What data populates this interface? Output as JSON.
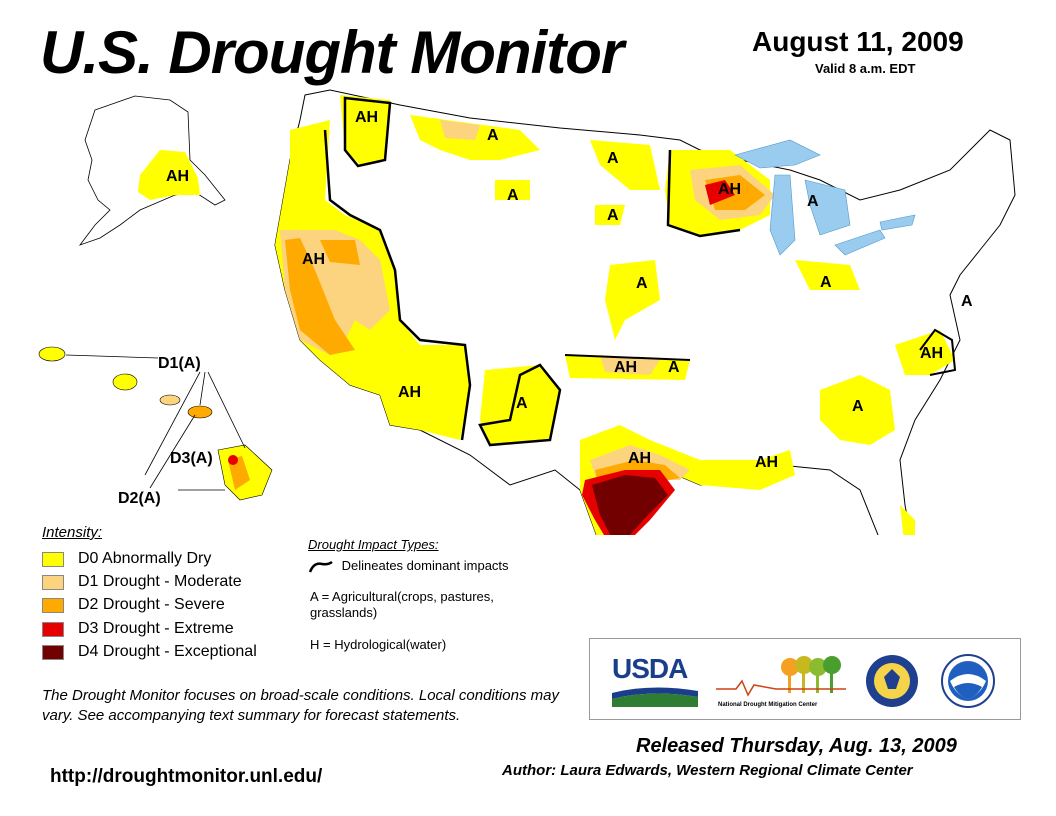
{
  "header": {
    "title": "U.S. Drought Monitor",
    "date": "August 11, 2009",
    "valid": "Valid 8 a.m. EDT"
  },
  "map": {
    "labels": {
      "ah_nw": "AH",
      "a_mt": "A",
      "a_nd": "A",
      "a_wy": "A",
      "a_sd": "A",
      "ah_ak": "AH",
      "ah_ca": "AH",
      "ah_az": "AH",
      "a_nm": "A",
      "ah_wi": "AH",
      "a_mi": "A",
      "a_ks": "A",
      "ah_ok": "AH",
      "a_ar": "A",
      "ah_oh": "A",
      "a_va": "A",
      "ah_nc": "AH",
      "a_ga": "A",
      "ah_tx": "AH",
      "ah_ms": "AH"
    },
    "hawaii": {
      "d1": "D1(A)",
      "d3": "D3(A)",
      "d2": "D2(A)"
    },
    "colors": {
      "d0": "#ffff00",
      "d1": "#fcd37f",
      "d2": "#ffaa00",
      "d3": "#e60000",
      "d4": "#730000",
      "water": "#99ccee",
      "border": "#000000"
    }
  },
  "legend": {
    "title": "Intensity:",
    "items": [
      {
        "label": "D0 Abnormally Dry",
        "color": "#ffff00"
      },
      {
        "label": "D1 Drought - Moderate",
        "color": "#fcd37f"
      },
      {
        "label": "D2 Drought - Severe",
        "color": "#ffaa00"
      },
      {
        "label": "D3 Drought - Extreme",
        "color": "#e60000"
      },
      {
        "label": "D4 Drought - Exceptional",
        "color": "#730000"
      }
    ]
  },
  "impacts": {
    "title": "Drought Impact Types:",
    "line": "Delineates dominant impacts",
    "a": "A = Agricultural(crops, pastures, grasslands)",
    "h": "H = Hydrological(water)"
  },
  "note": "The Drought Monitor focuses on broad-scale conditions. Local conditions may vary. See accompanying text summary for forecast statements.",
  "url": "http://droughtmonitor.unl.edu/",
  "logos": {
    "usda": "USDA",
    "ndmc": "National Drought Mitigation Center"
  },
  "footer": {
    "released": "Released Thursday, Aug. 13, 2009",
    "author": "Author: Laura Edwards, Western Regional Climate Center"
  }
}
